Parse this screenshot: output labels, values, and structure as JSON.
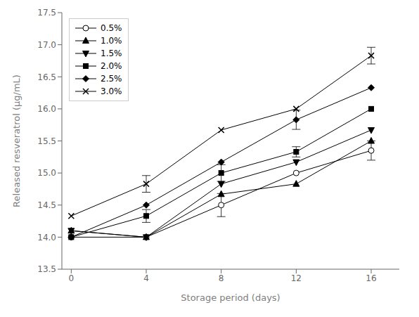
{
  "chart_data": {
    "type": "line",
    "x": [
      0,
      4,
      8,
      12,
      16
    ],
    "series": [
      {
        "name": "0.5%",
        "values": [
          14.0,
          14.0,
          14.5,
          15.0,
          15.35
        ],
        "yerr": [
          0.0,
          0.0,
          0.18,
          0.0,
          0.15
        ],
        "marker": "open_circle",
        "color": "black"
      },
      {
        "name": "1.0%",
        "values": [
          14.1,
          14.0,
          14.67,
          14.83,
          15.5
        ],
        "yerr": [
          0.0,
          0.0,
          0.0,
          0.0,
          0.0
        ],
        "marker": "triangle_up",
        "color": "black"
      },
      {
        "name": "1.5%",
        "values": [
          14.1,
          14.0,
          14.83,
          15.17,
          15.67
        ],
        "yerr": [
          0.0,
          0.0,
          0.0,
          0.0,
          0.0
        ],
        "marker": "triangle_down",
        "color": "black"
      },
      {
        "name": "2.0%",
        "values": [
          14.0,
          14.33,
          15.0,
          15.33,
          16.0
        ],
        "yerr": [
          0.0,
          0.1,
          0.13,
          0.08,
          0.0
        ],
        "marker": "square",
        "color": "black"
      },
      {
        "name": "2.5%",
        "values": [
          14.0,
          14.5,
          15.17,
          15.83,
          16.33
        ],
        "yerr": [
          0.0,
          0.0,
          0.0,
          0.15,
          0.0
        ],
        "marker": "diamond",
        "color": "black"
      },
      {
        "name": "3.0%",
        "values": [
          14.33,
          14.83,
          15.67,
          16.0,
          16.83
        ],
        "yerr": [
          0.0,
          0.13,
          0.0,
          0.0,
          0.13
        ],
        "marker": "x",
        "color": "black"
      }
    ],
    "xlabel": "Storage period (days)",
    "ylabel": "Released resveratrol (μg/mL)",
    "xlim": [
      -0.5,
      17.5
    ],
    "ylim": [
      13.5,
      17.5
    ],
    "xticks": [
      0,
      4,
      8,
      12,
      16
    ],
    "yticks": [
      13.5,
      {
        "value": 14.0,
        "label": "14.0"
      },
      14.5,
      {
        "value": 15.0,
        "label": "15.0"
      },
      15.5,
      {
        "value": 16.0,
        "label": "16.0"
      },
      16.5,
      {
        "value": 17.0,
        "label": "17.0"
      },
      17.5
    ],
    "legend": "upper left",
    "grid": false
  }
}
